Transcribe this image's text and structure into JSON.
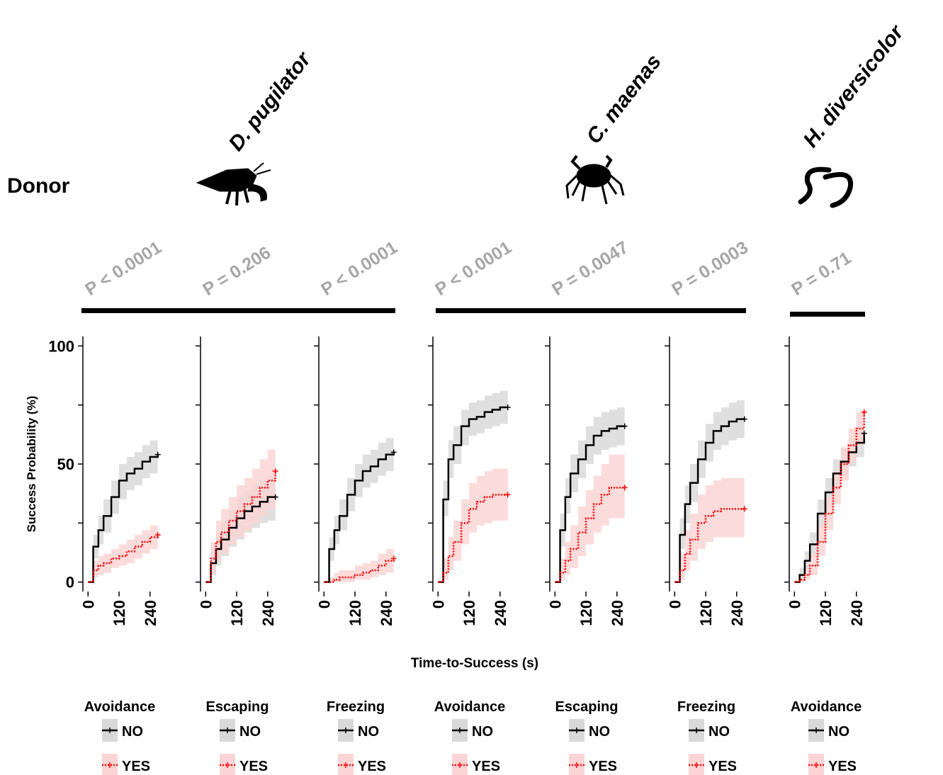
{
  "header": {
    "donor": "Donor",
    "xlabel": "Time-to-Success (s)"
  },
  "groups": [
    {
      "species": "D. pugilator"
    },
    {
      "species": "C. maenas"
    },
    {
      "species": "H. diversicolor"
    }
  ],
  "chart_data": [
    {
      "type": "line",
      "p_value": "P < 0.0001",
      "legend_title": "Avoidance",
      "ylabel": "Success Probability (%)",
      "ytick_labels": true,
      "x": [
        0,
        20,
        40,
        60,
        90,
        120,
        150,
        180,
        210,
        240,
        270
      ],
      "xlim": [
        -20,
        290
      ],
      "xticks": [
        0,
        120,
        240
      ],
      "ylim": [
        -4,
        104
      ],
      "yticks": [
        0,
        50,
        100
      ],
      "yminor": [
        25,
        75
      ],
      "series": [
        {
          "name": "NO",
          "color": "#000000",
          "band_color": "#d9d9d9",
          "linestyle": "solid",
          "values": [
            0,
            15,
            22,
            28,
            36,
            43,
            46,
            48,
            51,
            53,
            54
          ],
          "lower": [
            0,
            10,
            16,
            21,
            29,
            35,
            39,
            41,
            44,
            46,
            47
          ],
          "upper": [
            0,
            20,
            28,
            35,
            43,
            50,
            53,
            55,
            58,
            60,
            61
          ]
        },
        {
          "name": "YES",
          "color": "#ff0000",
          "band_color": "#fbd5d5",
          "linestyle": "dotted",
          "values": [
            0,
            5,
            7,
            8,
            10,
            11,
            13,
            15,
            17,
            19,
            20
          ],
          "lower": [
            0,
            2,
            3,
            4,
            6,
            7,
            8,
            10,
            12,
            14,
            15
          ],
          "upper": [
            0,
            9,
            11,
            12,
            14,
            16,
            18,
            20,
            22,
            24,
            25
          ]
        }
      ]
    },
    {
      "type": "line",
      "p_value": "P = 0.206",
      "legend_title": "Escaping",
      "ytick_labels": false,
      "x": [
        0,
        20,
        40,
        60,
        90,
        120,
        150,
        180,
        210,
        240,
        270
      ],
      "xlim": [
        -20,
        290
      ],
      "xticks": [
        0,
        120,
        240
      ],
      "ylim": [
        -4,
        104
      ],
      "yticks": [
        0,
        50,
        100
      ],
      "yminor": [
        25,
        75
      ],
      "series": [
        {
          "name": "NO",
          "color": "#000000",
          "band_color": "#d9d9d9",
          "linestyle": "solid",
          "values": [
            0,
            8,
            14,
            18,
            23,
            27,
            30,
            32,
            34,
            36,
            36
          ],
          "lower": [
            0,
            3,
            7,
            11,
            15,
            18,
            21,
            23,
            25,
            26,
            26
          ],
          "upper": [
            0,
            13,
            21,
            26,
            31,
            36,
            39,
            41,
            43,
            45,
            46
          ]
        },
        {
          "name": "YES",
          "color": "#ff0000",
          "band_color": "#fbd5d5",
          "linestyle": "dotted",
          "values": [
            0,
            10,
            17,
            21,
            26,
            30,
            33,
            36,
            40,
            43,
            47
          ],
          "lower": [
            0,
            4,
            9,
            12,
            16,
            19,
            22,
            25,
            28,
            31,
            34
          ],
          "upper": [
            0,
            17,
            26,
            31,
            36,
            41,
            44,
            48,
            52,
            56,
            60
          ]
        }
      ]
    },
    {
      "type": "line",
      "p_value": "P < 0.0001",
      "legend_title": "Freezing",
      "ytick_labels": false,
      "x": [
        0,
        20,
        40,
        60,
        90,
        120,
        150,
        180,
        210,
        240,
        270
      ],
      "xlim": [
        -20,
        290
      ],
      "xticks": [
        0,
        120,
        240
      ],
      "ylim": [
        -4,
        104
      ],
      "yticks": [
        0,
        50,
        100
      ],
      "yminor": [
        25,
        75
      ],
      "series": [
        {
          "name": "NO",
          "color": "#000000",
          "band_color": "#d9d9d9",
          "linestyle": "solid",
          "values": [
            0,
            14,
            22,
            28,
            37,
            43,
            47,
            49,
            52,
            54,
            55
          ],
          "lower": [
            0,
            9,
            16,
            22,
            30,
            36,
            40,
            42,
            45,
            47,
            48
          ],
          "upper": [
            0,
            19,
            28,
            35,
            44,
            50,
            54,
            56,
            59,
            61,
            62
          ]
        },
        {
          "name": "YES",
          "color": "#ff0000",
          "band_color": "#fbd5d5",
          "linestyle": "dotted",
          "values": [
            0,
            0,
            1,
            2,
            2,
            3,
            4,
            5,
            7,
            9,
            10
          ],
          "lower": [
            0,
            0,
            0,
            0,
            0,
            1,
            1,
            2,
            3,
            4,
            5
          ],
          "upper": [
            0,
            2,
            4,
            5,
            5,
            7,
            8,
            9,
            12,
            14,
            15
          ]
        }
      ]
    },
    {
      "type": "line",
      "p_value": "P < 0.0001",
      "legend_title": "Avoidance",
      "ytick_labels": false,
      "x": [
        0,
        20,
        40,
        60,
        90,
        120,
        150,
        180,
        210,
        240,
        270
      ],
      "xlim": [
        -20,
        290
      ],
      "xticks": [
        0,
        120,
        240
      ],
      "ylim": [
        -4,
        104
      ],
      "yticks": [
        0,
        50,
        100
      ],
      "yminor": [
        25,
        75
      ],
      "series": [
        {
          "name": "NO",
          "color": "#000000",
          "band_color": "#d9d9d9",
          "linestyle": "solid",
          "values": [
            0,
            35,
            52,
            58,
            66,
            69,
            70,
            72,
            73,
            74,
            74
          ],
          "lower": [
            0,
            28,
            44,
            50,
            58,
            62,
            63,
            65,
            66,
            67,
            67
          ],
          "upper": [
            0,
            43,
            60,
            66,
            73,
            76,
            77,
            79,
            80,
            81,
            81
          ]
        },
        {
          "name": "YES",
          "color": "#ff0000",
          "band_color": "#fbd5d5",
          "linestyle": "dotted",
          "values": [
            0,
            4,
            11,
            17,
            25,
            31,
            34,
            36,
            37,
            37,
            37
          ],
          "lower": [
            0,
            1,
            5,
            9,
            16,
            21,
            24,
            25,
            26,
            26,
            26
          ],
          "upper": [
            0,
            10,
            19,
            26,
            35,
            42,
            45,
            47,
            48,
            48,
            48
          ]
        }
      ]
    },
    {
      "type": "line",
      "p_value": "P = 0.0047",
      "legend_title": "Escaping",
      "ytick_labels": false,
      "x": [
        0,
        20,
        40,
        60,
        90,
        120,
        150,
        180,
        210,
        240,
        270
      ],
      "xlim": [
        -20,
        290
      ],
      "xticks": [
        0,
        120,
        240
      ],
      "ylim": [
        -4,
        104
      ],
      "yticks": [
        0,
        50,
        100
      ],
      "yminor": [
        25,
        75
      ],
      "series": [
        {
          "name": "NO",
          "color": "#000000",
          "band_color": "#d9d9d9",
          "linestyle": "solid",
          "values": [
            0,
            22,
            36,
            46,
            52,
            58,
            62,
            64,
            65,
            66,
            66
          ],
          "lower": [
            0,
            15,
            29,
            38,
            44,
            50,
            54,
            56,
            57,
            58,
            58
          ],
          "upper": [
            0,
            29,
            44,
            54,
            60,
            66,
            70,
            72,
            73,
            74,
            74
          ]
        },
        {
          "name": "YES",
          "color": "#ff0000",
          "band_color": "#fbd5d5",
          "linestyle": "dotted",
          "values": [
            0,
            4,
            9,
            14,
            21,
            27,
            33,
            37,
            40,
            40,
            40
          ],
          "lower": [
            0,
            1,
            3,
            6,
            11,
            16,
            21,
            24,
            27,
            27,
            27
          ],
          "upper": [
            0,
            10,
            17,
            24,
            32,
            39,
            45,
            50,
            54,
            54,
            54
          ]
        }
      ]
    },
    {
      "type": "line",
      "p_value": "P = 0.0003",
      "legend_title": "Freezing",
      "ytick_labels": false,
      "x": [
        0,
        20,
        40,
        60,
        90,
        120,
        150,
        180,
        210,
        240,
        270
      ],
      "xlim": [
        -20,
        290
      ],
      "xticks": [
        0,
        120,
        240
      ],
      "ylim": [
        -4,
        104
      ],
      "yticks": [
        0,
        50,
        100
      ],
      "yminor": [
        25,
        75
      ],
      "series": [
        {
          "name": "NO",
          "color": "#000000",
          "band_color": "#d9d9d9",
          "linestyle": "solid",
          "values": [
            0,
            20,
            33,
            42,
            52,
            59,
            64,
            66,
            68,
            69,
            69
          ],
          "lower": [
            0,
            14,
            25,
            34,
            44,
            51,
            56,
            58,
            60,
            61,
            61
          ],
          "upper": [
            0,
            27,
            41,
            50,
            60,
            67,
            72,
            74,
            76,
            77,
            77
          ]
        },
        {
          "name": "YES",
          "color": "#ff0000",
          "band_color": "#fbd5d5",
          "linestyle": "dotted",
          "values": [
            0,
            5,
            12,
            18,
            25,
            28,
            30,
            31,
            31,
            31,
            31
          ],
          "lower": [
            0,
            1,
            5,
            9,
            14,
            17,
            19,
            19,
            19,
            19,
            19
          ],
          "upper": [
            0,
            12,
            22,
            29,
            37,
            41,
            43,
            44,
            44,
            44,
            44
          ]
        }
      ]
    },
    {
      "type": "line",
      "p_value": "P = 0.71",
      "legend_title": "Avoidance",
      "ytick_labels": false,
      "x": [
        0,
        20,
        40,
        60,
        90,
        120,
        150,
        180,
        210,
        240,
        270
      ],
      "xlim": [
        -20,
        290
      ],
      "xticks": [
        0,
        120,
        240
      ],
      "ylim": [
        -4,
        104
      ],
      "yticks": [
        0,
        50,
        100
      ],
      "yminor": [
        25,
        75
      ],
      "series": [
        {
          "name": "NO",
          "color": "#000000",
          "band_color": "#d9d9d9",
          "linestyle": "solid",
          "values": [
            0,
            3,
            9,
            16,
            29,
            38,
            46,
            51,
            55,
            59,
            63
          ],
          "lower": [
            0,
            1,
            5,
            11,
            23,
            32,
            40,
            45,
            49,
            53,
            57
          ],
          "upper": [
            0,
            6,
            13,
            21,
            35,
            44,
            52,
            57,
            61,
            65,
            69
          ]
        },
        {
          "name": "YES",
          "color": "#ff0000",
          "band_color": "#fbd5d5",
          "linestyle": "dotted",
          "values": [
            0,
            1,
            3,
            7,
            17,
            29,
            40,
            50,
            58,
            65,
            72
          ],
          "lower": [
            0,
            0,
            1,
            3,
            11,
            22,
            33,
            43,
            51,
            58,
            65
          ],
          "upper": [
            0,
            3,
            6,
            12,
            24,
            36,
            47,
            57,
            65,
            72,
            79
          ]
        }
      ]
    }
  ]
}
